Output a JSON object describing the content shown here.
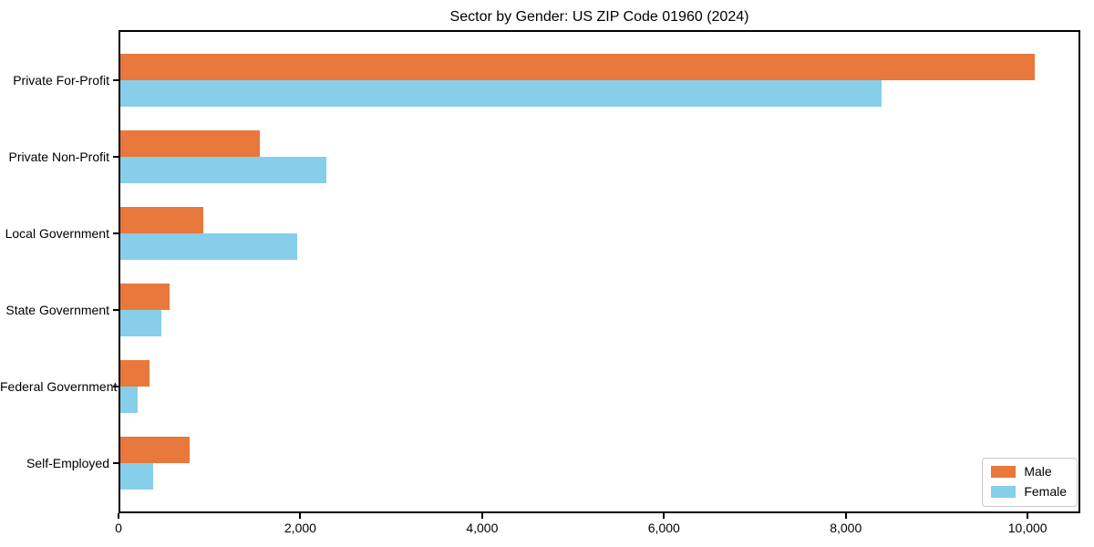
{
  "chart_data": {
    "type": "bar",
    "orientation": "horizontal",
    "title": "Sector by Gender: US ZIP Code 01960 (2024)",
    "categories": [
      "Private For-Profit",
      "Private Non-Profit",
      "Local Government",
      "State Government",
      "Federal Government",
      "Self-Employed"
    ],
    "series": [
      {
        "name": "Male",
        "color": "#E8783C",
        "values": [
          10080,
          1550,
          930,
          560,
          340,
          780
        ]
      },
      {
        "name": "Female",
        "color": "#87CEEB",
        "values": [
          8390,
          2290,
          1970,
          470,
          210,
          380
        ]
      }
    ],
    "xlabel": "",
    "ylabel": "",
    "xlim": [
      0,
      10580
    ],
    "x_ticks": {
      "values": [
        0,
        2000,
        4000,
        6000,
        8000,
        10000
      ],
      "labels": [
        "0",
        "2,000",
        "4,000",
        "6,000",
        "8,000",
        "10,000"
      ]
    },
    "grid": false,
    "legend": {
      "position": "lower right"
    }
  },
  "colors": {
    "spine": "#000000",
    "text": "#000000",
    "background": "#ffffff",
    "legend_border": "#c9c9c9"
  }
}
